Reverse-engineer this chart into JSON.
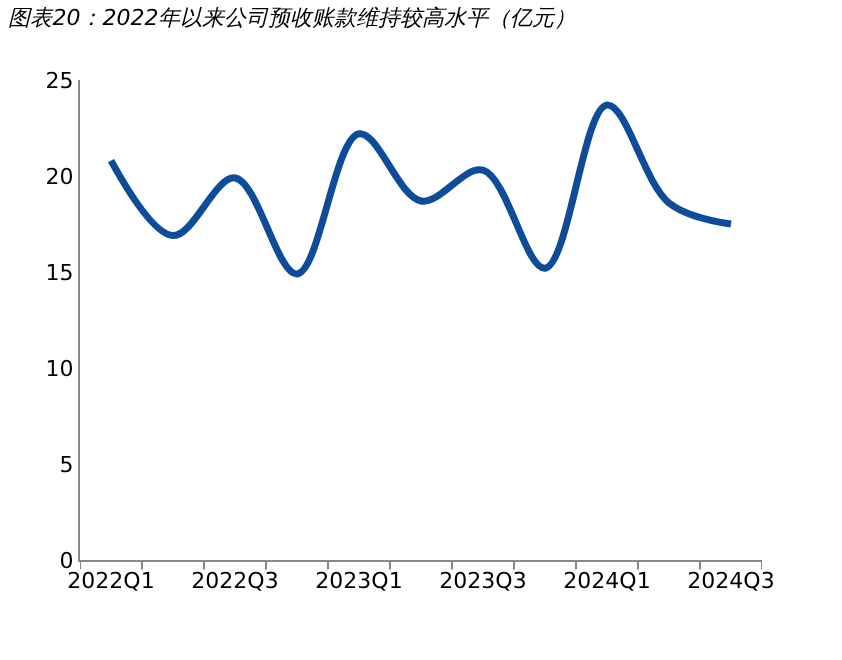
{
  "chart_data": {
    "type": "line",
    "title": "图表20：2022年以来公司预收账款维持较高水平（亿元）",
    "categories": [
      "2022Q1",
      null,
      "2022Q3",
      null,
      "2023Q1",
      null,
      "2023Q3",
      null,
      "2024Q1",
      null,
      "2024Q3"
    ],
    "series": [
      {
        "color": "#0e4c9a",
        "values": [
          20.8,
          16.9,
          19.9,
          14.9,
          22.2,
          18.7,
          20.3,
          15.2,
          23.7,
          18.6,
          17.5
        ]
      }
    ],
    "ylim": [
      0,
      25
    ],
    "yticks": [
      0,
      5,
      10,
      15,
      20,
      25
    ],
    "marker": "none",
    "line_style": "solid"
  }
}
